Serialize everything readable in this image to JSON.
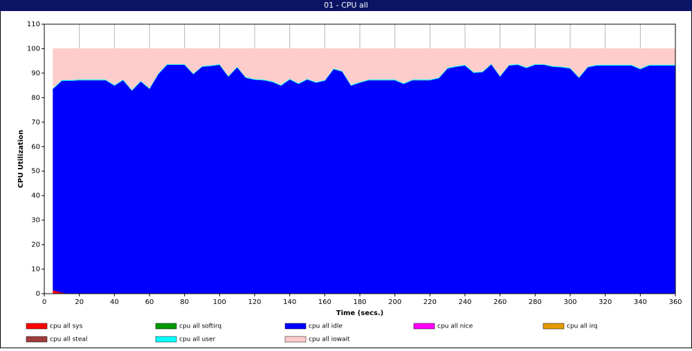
{
  "chart_data": {
    "type": "stacked-area",
    "title": "01 - CPU all",
    "x_label": "Time (secs.)",
    "y_label": "CPU Utilization",
    "x": [
      5,
      10,
      15,
      20,
      25,
      30,
      35,
      40,
      45,
      50,
      55,
      60,
      65,
      70,
      75,
      80,
      85,
      90,
      95,
      100,
      105,
      110,
      115,
      120,
      125,
      130,
      135,
      140,
      145,
      150,
      155,
      160,
      165,
      170,
      175,
      180,
      185,
      190,
      195,
      200,
      205,
      210,
      215,
      220,
      225,
      230,
      235,
      240,
      245,
      250,
      255,
      260,
      265,
      270,
      275,
      280,
      285,
      290,
      295,
      300,
      305,
      310,
      315,
      320,
      325,
      330,
      335,
      340,
      345,
      350,
      355,
      360
    ],
    "series": [
      {
        "name": "cpu all sys",
        "color": "#ff0000",
        "values": [
          1.5,
          0.5,
          0,
          0,
          0,
          0,
          0,
          0,
          0,
          0,
          0,
          0,
          0,
          0,
          0,
          0,
          0,
          0,
          0,
          0,
          0,
          0,
          0,
          0,
          0,
          0,
          0,
          0,
          0,
          0,
          0,
          0,
          0,
          0,
          0,
          0,
          0,
          0,
          0,
          0,
          0,
          0,
          0,
          0,
          0,
          0,
          0,
          0,
          0,
          0,
          0,
          0,
          0,
          0,
          0,
          0,
          0,
          0,
          0,
          0,
          0,
          0,
          0,
          0,
          0,
          0,
          0,
          0,
          0,
          0,
          0,
          0
        ]
      },
      {
        "name": "cpu all softirq",
        "color": "#009900",
        "values": [
          0,
          0,
          0,
          0,
          0,
          0,
          0,
          0,
          0,
          0,
          0,
          0,
          0,
          0,
          0,
          0,
          0,
          0,
          0,
          0,
          0,
          0,
          0,
          0,
          0,
          0,
          0,
          0,
          0,
          0,
          0,
          0,
          0,
          0,
          0,
          0,
          0,
          0,
          0,
          0,
          0,
          0,
          0,
          0,
          0,
          0,
          0,
          0,
          0,
          0,
          0,
          0,
          0,
          0,
          0,
          0,
          0,
          0,
          0,
          0,
          0,
          0,
          0,
          0,
          0,
          0,
          0,
          0,
          0,
          0,
          0,
          0
        ]
      },
      {
        "name": "cpu all idle",
        "color": "#0000ff",
        "values": [
          82.2,
          86.5,
          87,
          87.2,
          87.2,
          87.2,
          87.2,
          85,
          87.2,
          83,
          86.7,
          83.7,
          89.7,
          93.5,
          93.5,
          93.5,
          89.7,
          92.7,
          93,
          93.5,
          88.7,
          92.5,
          88.2,
          87.4,
          87.2,
          86.5,
          85,
          87.5,
          85.7,
          87.5,
          86.2,
          87,
          91.7,
          90.7,
          85,
          86.2,
          87.2,
          87.2,
          87.2,
          87.2,
          85.7,
          87.2,
          87.2,
          87.2,
          88,
          92,
          92.7,
          93.2,
          90.2,
          90.5,
          93.7,
          88.7,
          93.2,
          93.5,
          92.2,
          93.5,
          93.5,
          92.7,
          92.5,
          92,
          88.2,
          92.5,
          93.2,
          93.2,
          93.2,
          93.2,
          93.2,
          91.7,
          93.2,
          93.2,
          93.2,
          93.2
        ]
      },
      {
        "name": "cpu all nice",
        "color": "#ff00ff",
        "values": [
          0,
          0,
          0,
          0,
          0,
          0,
          0,
          0,
          0,
          0,
          0,
          0,
          0,
          0,
          0,
          0,
          0,
          0,
          0,
          0,
          0,
          0,
          0,
          0,
          0,
          0,
          0,
          0,
          0,
          0,
          0,
          0,
          0,
          0,
          0,
          0,
          0,
          0,
          0,
          0,
          0,
          0,
          0,
          0,
          0,
          0,
          0,
          0,
          0,
          0,
          0,
          0,
          0,
          0,
          0,
          0,
          0,
          0,
          0,
          0,
          0,
          0,
          0,
          0,
          0,
          0,
          0,
          0,
          0,
          0,
          0,
          0
        ]
      },
      {
        "name": "cpu all irq",
        "color": "#e69900",
        "values": [
          0,
          0,
          0,
          0,
          0,
          0,
          0,
          0,
          0,
          0,
          0,
          0,
          0,
          0,
          0,
          0,
          0,
          0,
          0,
          0,
          0,
          0,
          0,
          0,
          0,
          0,
          0,
          0,
          0,
          0,
          0,
          0,
          0,
          0,
          0,
          0,
          0,
          0,
          0,
          0,
          0,
          0,
          0,
          0,
          0,
          0,
          0,
          0,
          0,
          0,
          0,
          0,
          0,
          0,
          0,
          0,
          0,
          0,
          0,
          0,
          0,
          0,
          0,
          0,
          0,
          0,
          0,
          0,
          0,
          0,
          0,
          0
        ]
      },
      {
        "name": "cpu all steal",
        "color": "#a03c3c",
        "values": [
          0,
          0,
          0,
          0,
          0,
          0,
          0,
          0,
          0,
          0,
          0,
          0,
          0,
          0,
          0,
          0,
          0,
          0,
          0,
          0,
          0,
          0,
          0,
          0,
          0,
          0,
          0,
          0,
          0,
          0,
          0,
          0,
          0,
          0,
          0,
          0,
          0,
          0,
          0,
          0,
          0,
          0,
          0,
          0,
          0,
          0,
          0,
          0,
          0,
          0,
          0,
          0,
          0,
          0,
          0,
          0,
          0,
          0,
          0,
          0,
          0,
          0,
          0,
          0,
          0,
          0,
          0,
          0,
          0,
          0,
          0,
          0
        ]
      },
      {
        "name": "cpu all user",
        "color": "#00ffff",
        "values": [
          0.3,
          0.3,
          0.3,
          0.3,
          0.3,
          0.3,
          0.3,
          0.3,
          0.3,
          0.3,
          0.3,
          0.3,
          0.3,
          0.3,
          0.3,
          0.3,
          0.3,
          0.3,
          0.3,
          0.3,
          0.3,
          0.3,
          0.3,
          0.3,
          0.3,
          0.3,
          0.3,
          0.3,
          0.3,
          0.3,
          0.3,
          0.3,
          0.3,
          0.3,
          0.3,
          0.3,
          0.3,
          0.3,
          0.3,
          0.3,
          0.3,
          0.3,
          0.3,
          0.3,
          0.3,
          0.3,
          0.3,
          0.3,
          0.3,
          0.3,
          0.3,
          0.3,
          0.3,
          0.3,
          0.3,
          0.3,
          0.3,
          0.3,
          0.3,
          0.3,
          0.3,
          0.3,
          0.3,
          0.3,
          0.3,
          0.3,
          0.3,
          0.3,
          0.3,
          0.3,
          0.3,
          0.3
        ]
      },
      {
        "name": "cpu all iowait",
        "color": "#ffcccc",
        "values": [
          16,
          12.7,
          12.7,
          12.5,
          12.5,
          12.5,
          12.5,
          14.7,
          12.5,
          16.7,
          13,
          16,
          10,
          6.2,
          6.2,
          6.2,
          10,
          7,
          6.7,
          6.2,
          11,
          7.2,
          11.5,
          12.3,
          12.5,
          13.2,
          14.7,
          12.2,
          14,
          12.2,
          13.5,
          12.7,
          8,
          9,
          14.7,
          13.5,
          12.5,
          12.5,
          12.5,
          12.5,
          14,
          12.5,
          12.5,
          12.5,
          11.7,
          7.7,
          7,
          6.5,
          9.5,
          9.2,
          6,
          11,
          6.5,
          6.2,
          7.5,
          6.2,
          6.2,
          7,
          7.2,
          7.7,
          11.5,
          7.2,
          6.5,
          6.5,
          6.5,
          6.5,
          6.5,
          8,
          6.5,
          6.5,
          6.5,
          6.5
        ]
      }
    ],
    "xlim": [
      0,
      360
    ],
    "xticks": [
      0,
      20,
      40,
      60,
      80,
      100,
      120,
      140,
      160,
      180,
      200,
      220,
      240,
      260,
      280,
      300,
      320,
      340,
      360
    ],
    "ylim": [
      0,
      110
    ],
    "yticks": [
      0,
      10,
      20,
      30,
      40,
      50,
      60,
      70,
      80,
      90,
      100,
      110
    ],
    "grid": true
  }
}
